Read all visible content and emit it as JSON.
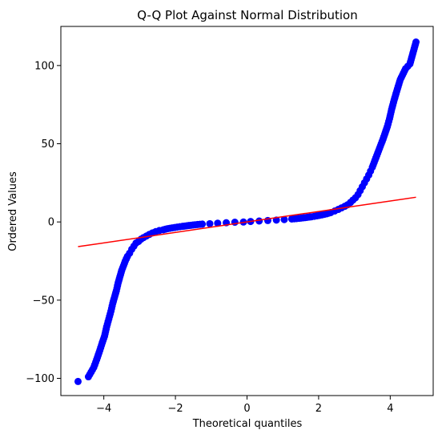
{
  "chart_data": {
    "type": "scatter",
    "title": "Q-Q Plot Against Normal Distribution",
    "xlabel": "Theoretical quantiles",
    "ylabel": "Ordered Values",
    "xlim": [
      -5.2,
      5.2
    ],
    "ylim": [
      -111,
      125
    ],
    "xticks": [
      -4,
      -2,
      0,
      2,
      4
    ],
    "xtick_labels": [
      "−4",
      "−2",
      "0",
      "2",
      "4"
    ],
    "yticks": [
      -100,
      -50,
      0,
      50,
      100
    ],
    "ytick_labels": [
      "−100",
      "−50",
      "0",
      "50",
      "100"
    ],
    "grid": false,
    "legend": "none",
    "marker_color": "#0000ff",
    "line_color": "#ff0000",
    "fit_line": {
      "x": [
        -4.72,
        4.72
      ],
      "y": [
        -15.8,
        15.8
      ]
    },
    "series": [
      {
        "x": [
          -4.72,
          -4.43,
          -4.28,
          -4.2,
          -4.11,
          -4.04,
          -3.98,
          -3.92,
          -3.86,
          -3.8,
          -3.75,
          -3.7,
          -3.65,
          -3.6,
          -3.55,
          -3.5,
          -3.45,
          -3.4,
          -3.34,
          -3.28,
          -3.22,
          -3.16,
          -3.1,
          -3.03,
          -2.96,
          -2.89,
          -2.81,
          -2.73,
          -2.64,
          -2.55,
          -2.45,
          -2.34,
          -2.22,
          -2.09,
          -1.95,
          -1.8,
          -1.63,
          -1.45,
          -1.25,
          -1.04,
          -0.82,
          -0.58,
          -0.34,
          -0.1,
          0.1,
          0.34,
          0.58,
          0.82,
          1.04,
          1.25,
          1.45,
          1.63,
          1.8,
          1.95,
          2.09,
          2.22,
          2.34,
          2.45,
          2.55,
          2.64,
          2.73,
          2.81,
          2.89,
          2.96,
          3.03,
          3.1,
          3.16,
          3.22,
          3.28,
          3.34,
          3.4,
          3.45,
          3.5,
          3.55,
          3.6,
          3.65,
          3.7,
          3.75,
          3.8,
          3.86,
          3.92,
          3.98,
          4.04,
          4.11,
          4.2,
          4.28,
          4.43,
          4.55,
          4.72
        ],
        "y": [
          -102,
          -99,
          -93,
          -88,
          -82,
          -77,
          -73,
          -67,
          -62,
          -57,
          -52,
          -48,
          -44,
          -39,
          -35,
          -31,
          -28,
          -25,
          -22,
          -20,
          -17.5,
          -15.5,
          -13.5,
          -12.5,
          -11,
          -10,
          -9,
          -8,
          -7,
          -6.2,
          -5.5,
          -5,
          -4.3,
          -3.8,
          -3.3,
          -2.8,
          -2.3,
          -1.8,
          -1.4,
          -1.1,
          -0.8,
          -0.5,
          -0.2,
          -0.05,
          0.3,
          0.6,
          0.9,
          1.2,
          1.5,
          1.9,
          2.3,
          2.8,
          3.3,
          3.9,
          4.5,
          5.2,
          6,
          7,
          8,
          9,
          10,
          11,
          12.5,
          14,
          15.5,
          17.5,
          20,
          22.5,
          25,
          27.5,
          30,
          32.5,
          35,
          38,
          41,
          44,
          47,
          50,
          53,
          57,
          61,
          66,
          72,
          78,
          85,
          91,
          98,
          101,
          115
        ]
      }
    ]
  }
}
